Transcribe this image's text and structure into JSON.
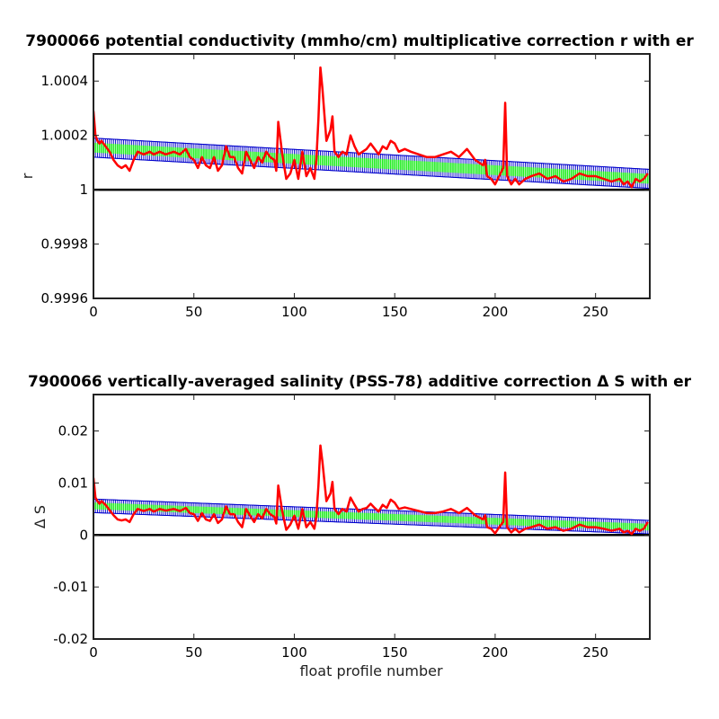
{
  "chart_data": [
    {
      "type": "line",
      "title": "7900066 potential conductivity (mmho/cm) multiplicative correction r with er",
      "xlabel": "",
      "ylabel": "r",
      "xlim": [
        0,
        277
      ],
      "ylim": [
        0.9996,
        1.0005
      ],
      "xticks": [
        0,
        50,
        100,
        150,
        200,
        250
      ],
      "yticks": [
        {
          "value": 0.9996,
          "label": "0.9996"
        },
        {
          "value": 0.9998,
          "label": "0.9998"
        },
        {
          "value": 1.0,
          "label": "1"
        },
        {
          "value": 1.0002,
          "label": "1.0002"
        },
        {
          "value": 1.0004,
          "label": "1.0004"
        }
      ],
      "reference_line": 1.0,
      "fit_band": {
        "x": [
          0,
          277
        ],
        "center": [
          1.000155,
          1.00004
        ],
        "halfwidth": 3.5e-05,
        "fill_halfwidth": 1.8e-05
      },
      "series": [
        {
          "color": "#ff0000",
          "x": [
            0,
            1,
            2,
            3,
            4,
            6,
            8,
            10,
            12,
            14,
            16,
            18,
            20,
            22,
            25,
            28,
            30,
            33,
            36,
            40,
            43,
            46,
            48,
            50,
            52,
            54,
            56,
            58,
            60,
            62,
            64,
            66,
            68,
            70,
            72,
            74,
            76,
            78,
            80,
            82,
            84,
            86,
            88,
            90,
            91,
            92,
            94,
            96,
            98,
            100,
            102,
            104,
            106,
            108,
            110,
            111,
            112,
            113,
            114,
            116,
            118,
            119,
            120,
            122,
            124,
            126,
            128,
            130,
            132,
            134,
            136,
            138,
            140,
            142,
            144,
            146,
            148,
            150,
            152,
            155,
            158,
            162,
            166,
            170,
            174,
            178,
            182,
            186,
            190,
            194,
            195,
            196,
            198,
            200,
            202,
            204,
            205,
            206,
            208,
            210,
            212,
            215,
            218,
            222,
            226,
            230,
            234,
            238,
            242,
            246,
            250,
            254,
            258,
            262,
            264,
            266,
            268,
            270,
            272,
            274,
            276
          ],
          "y": [
            1.00029,
            1.0002,
            1.00018,
            1.00017,
            1.00018,
            1.00016,
            1.00014,
            1.00011,
            1.00009,
            1.00008,
            1.00009,
            1.00007,
            1.00011,
            1.00014,
            1.00013,
            1.00014,
            1.00013,
            1.00014,
            1.00013,
            1.00014,
            1.00013,
            1.00015,
            1.00012,
            1.00011,
            1.00008,
            1.00012,
            1.00009,
            1.00008,
            1.00012,
            1.00007,
            1.00009,
            1.00016,
            1.00012,
            1.00012,
            1.00008,
            1.00006,
            1.00014,
            1.00011,
            1.00008,
            1.00012,
            1.0001,
            1.00014,
            1.00012,
            1.00011,
            1.00007,
            1.00025,
            1.00013,
            1.00004,
            1.00006,
            1.00011,
            1.00004,
            1.00014,
            1.00005,
            1.00008,
            1.00004,
            1.00011,
            1.00026,
            1.00045,
            1.00037,
            1.00018,
            1.00022,
            1.00027,
            1.00014,
            1.00012,
            1.00014,
            1.00013,
            1.0002,
            1.00016,
            1.00013,
            1.00014,
            1.00015,
            1.00017,
            1.00015,
            1.00013,
            1.00016,
            1.00015,
            1.00018,
            1.00017,
            1.00014,
            1.00015,
            1.00014,
            1.00013,
            1.00012,
            1.00012,
            1.00013,
            1.00014,
            1.00012,
            1.00015,
            1.00011,
            1.00009,
            1.00011,
            1.00005,
            1.00004,
            1.00002,
            1.00005,
            1.00008,
            1.00032,
            1.00005,
            1.00002,
            1.00004,
            1.00002,
            1.00004,
            1.00005,
            1.00006,
            1.00004,
            1.00005,
            1.00003,
            1.00004,
            1.00006,
            1.00005,
            1.00005,
            1.00004,
            1.00003,
            1.00004,
            1.00002,
            1.00003,
            1.00001,
            1.00004,
            1.00003,
            1.00004,
            1.00006
          ]
        }
      ]
    },
    {
      "type": "line",
      "title": "7900066 vertically-averaged salinity (PSS-78) additive correction Δ S with er",
      "xlabel": "float profile number",
      "ylabel": "Δ S",
      "xlim": [
        0,
        277
      ],
      "ylim": [
        -0.02,
        0.027
      ],
      "xticks": [
        0,
        50,
        100,
        150,
        200,
        250
      ],
      "yticks": [
        {
          "value": -0.02,
          "label": "-0.02"
        },
        {
          "value": -0.01,
          "label": "-0.01"
        },
        {
          "value": 0,
          "label": "0"
        },
        {
          "value": 0.01,
          "label": "0.01"
        },
        {
          "value": 0.02,
          "label": "0.02"
        }
      ],
      "reference_line": 0,
      "fit_band": {
        "x": [
          0,
          277
        ],
        "center": [
          0.0056,
          0.0015
        ],
        "halfwidth": 0.0013,
        "fill_halfwidth": 0.00065
      },
      "series": [
        {
          "color": "#ff0000",
          "x": [
            0,
            1,
            2,
            3,
            4,
            6,
            8,
            10,
            12,
            14,
            16,
            18,
            20,
            22,
            25,
            28,
            30,
            33,
            36,
            40,
            43,
            46,
            48,
            50,
            52,
            54,
            56,
            58,
            60,
            62,
            64,
            66,
            68,
            70,
            72,
            74,
            76,
            78,
            80,
            82,
            84,
            86,
            88,
            90,
            91,
            92,
            94,
            96,
            98,
            100,
            102,
            104,
            106,
            108,
            110,
            111,
            112,
            113,
            114,
            116,
            118,
            119,
            120,
            122,
            124,
            126,
            128,
            130,
            132,
            134,
            136,
            138,
            140,
            142,
            144,
            146,
            148,
            150,
            152,
            155,
            158,
            162,
            166,
            170,
            174,
            178,
            182,
            186,
            190,
            194,
            195,
            196,
            198,
            200,
            202,
            204,
            205,
            206,
            208,
            210,
            212,
            215,
            218,
            222,
            226,
            230,
            234,
            238,
            242,
            246,
            250,
            254,
            258,
            262,
            264,
            266,
            268,
            270,
            272,
            274,
            276
          ],
          "y": [
            0.011,
            0.0072,
            0.0065,
            0.006,
            0.0065,
            0.0058,
            0.0048,
            0.0038,
            0.003,
            0.0028,
            0.003,
            0.0025,
            0.004,
            0.005,
            0.0046,
            0.005,
            0.0045,
            0.005,
            0.0047,
            0.005,
            0.0046,
            0.0052,
            0.0042,
            0.004,
            0.0027,
            0.0042,
            0.003,
            0.0027,
            0.004,
            0.0023,
            0.003,
            0.0055,
            0.004,
            0.004,
            0.0025,
            0.0015,
            0.005,
            0.0037,
            0.0025,
            0.004,
            0.0032,
            0.005,
            0.004,
            0.0035,
            0.0022,
            0.0095,
            0.0045,
            0.001,
            0.002,
            0.0037,
            0.0012,
            0.005,
            0.0015,
            0.0025,
            0.0012,
            0.0035,
            0.0095,
            0.0172,
            0.014,
            0.0065,
            0.008,
            0.0102,
            0.005,
            0.004,
            0.005,
            0.0045,
            0.0072,
            0.0058,
            0.0045,
            0.005,
            0.0052,
            0.006,
            0.0052,
            0.0045,
            0.0058,
            0.0052,
            0.0068,
            0.0062,
            0.005,
            0.0053,
            0.005,
            0.0046,
            0.0042,
            0.0042,
            0.0045,
            0.005,
            0.0042,
            0.0052,
            0.0038,
            0.003,
            0.0038,
            0.0015,
            0.0012,
            0.0003,
            0.0015,
            0.0025,
            0.012,
            0.0015,
            0.0005,
            0.0012,
            0.0005,
            0.0012,
            0.0015,
            0.002,
            0.0012,
            0.0015,
            0.0008,
            0.0012,
            0.002,
            0.0015,
            0.0015,
            0.0012,
            0.0008,
            0.0012,
            0.0005,
            0.0008,
            0.0002,
            0.0012,
            0.0008,
            0.0012,
            0.0025
          ]
        }
      ]
    }
  ]
}
